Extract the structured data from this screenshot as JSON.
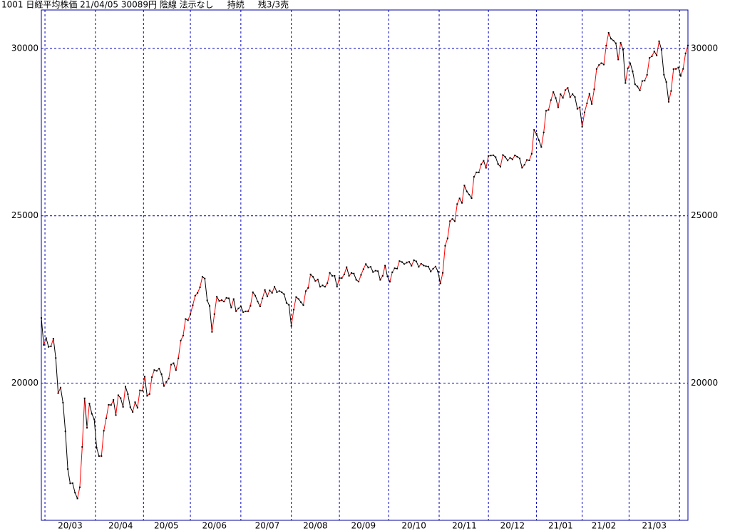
{
  "chart_data": {
    "type": "line",
    "title": "1001 日経平均株価 21/04/05 30089円 陰線 法示なし     持続     残3/3売",
    "categories": [
      null,
      null,
      null,
      null,
      null,
      null,
      null,
      null,
      null,
      null,
      null,
      null,
      "20/03",
      null,
      null,
      null,
      null,
      null,
      null,
      null,
      null,
      null,
      null,
      null,
      null,
      null,
      null,
      null,
      null,
      null,
      null,
      null,
      null,
      "20/04",
      null,
      null,
      null,
      null,
      null,
      null,
      null,
      null,
      null,
      null,
      null,
      null,
      null,
      null,
      null,
      null,
      null,
      null,
      "20/05",
      null,
      null,
      null,
      null,
      null,
      null,
      null,
      null,
      null,
      null,
      null,
      null,
      null,
      null,
      null,
      null,
      null,
      null,
      null,
      "20/06",
      null,
      null,
      null,
      null,
      null,
      null,
      null,
      null,
      null,
      null,
      null,
      null,
      null,
      null,
      null,
      null,
      null,
      null,
      null,
      null,
      null,
      "20/07",
      null,
      null,
      null,
      null,
      null,
      null,
      null,
      null,
      null,
      null,
      null,
      null,
      null,
      null,
      null,
      null,
      null,
      null,
      null,
      "20/08",
      null,
      null,
      null,
      null,
      null,
      null,
      null,
      null,
      null,
      null,
      null,
      null,
      null,
      null,
      null,
      null,
      null,
      null,
      null,
      "20/09",
      null,
      null,
      null,
      null,
      null,
      null,
      null,
      null,
      null,
      null,
      null,
      null,
      null,
      null,
      null,
      null,
      null,
      null,
      null,
      null,
      "20/10",
      null,
      null,
      null,
      null,
      null,
      null,
      null,
      null,
      null,
      null,
      null,
      null,
      null,
      null,
      null,
      null,
      null,
      null,
      null,
      null,
      "20/11",
      null,
      null,
      null,
      null,
      null,
      null,
      null,
      null,
      null,
      null,
      null,
      null,
      null,
      null,
      null,
      null,
      null,
      null,
      null,
      "20/12",
      null,
      null,
      null,
      null,
      null,
      null,
      null,
      null,
      null,
      null,
      null,
      null,
      null,
      null,
      null,
      null,
      null,
      null,
      null,
      "21/01",
      null,
      null,
      null,
      null,
      null,
      null,
      null,
      null,
      null,
      null,
      null,
      null,
      null,
      null,
      null,
      null,
      null,
      "21/02",
      null,
      null,
      null,
      null,
      null,
      null,
      null,
      null,
      null,
      null,
      null,
      null,
      null,
      null,
      null,
      null,
      null,
      null,
      null,
      null,
      "21/03",
      null,
      null,
      null,
      null,
      null,
      null,
      null,
      null,
      null,
      null,
      null,
      null,
      null,
      null
    ],
    "values": [
      21948,
      21142,
      21344,
      21082,
      21100,
      21329,
      20749,
      19698,
      19867,
      19416,
      18559,
      17431,
      17002,
      17011,
      16726,
      16552,
      16887,
      18092,
      19546,
      18664,
      19389,
      19084,
      18917,
      18065,
      17819,
      17820,
      18576,
      18950,
      19353,
      19345,
      19499,
      19043,
      19638,
      19550,
      19290,
      19897,
      19669,
      19281,
      19137,
      19429,
      19262,
      19783,
      19771,
      20193,
      19619,
      19674,
      20179,
      20390,
      20366,
      20433,
      20267,
      19914,
      20037,
      20133,
      20552,
      20595,
      20388,
      20741,
      21271,
      21419,
      21916,
      21877,
      22062,
      22325,
      22613,
      22695,
      22863,
      23178,
      23124,
      22472,
      22305,
      21531,
      22062,
      22582,
      22455,
      22479,
      22437,
      22549,
      22534,
      22259,
      22512,
      22149,
      22232,
      22288,
      22121,
      22145,
      22147,
      22306,
      22714,
      22614,
      22438,
      22290,
      22529,
      22784,
      22587,
      22770,
      22697,
      22881,
      22717,
      22751,
      22715,
      22657,
      22397,
      22339,
      21710,
      22195,
      22573,
      22514,
      22418,
      22329,
      22750,
      22843,
      23249,
      23178,
      23051,
      23096,
      22880,
      22920,
      22880,
      22985,
      23296,
      23204,
      23208,
      22882,
      23140,
      23138,
      23247,
      23465,
      23205,
      23290,
      23274,
      23089,
      23032,
      23235,
      23406,
      23559,
      23454,
      23475,
      23319,
      23360,
      23346,
      23087,
      23204,
      23511,
      23185,
      23029,
      23312,
      23433,
      23422,
      23647,
      23619,
      23558,
      23601,
      23626,
      23507,
      23671,
      23639,
      23474,
      23567,
      23516,
      23494,
      23485,
      23331,
      23418,
      23485,
      23331,
      22977,
      23295,
      24105,
      24325,
      24839,
      24905,
      24839,
      25349,
      25520,
      25385,
      25906,
      25728,
      25634,
      25527,
      26165,
      26297,
      26296,
      26537,
      26644,
      26433,
      26787,
      26800,
      26809,
      26751,
      26547,
      26467,
      26817,
      26756,
      26652,
      26732,
      26687,
      26806,
      26763,
      26714,
      26436,
      26524,
      26668,
      26656,
      26854,
      27568,
      27444,
      27258,
      27055,
      27490,
      28139,
      28164,
      28456,
      28698,
      28519,
      28242,
      28633,
      28523,
      28756,
      28822,
      28546,
      28635,
      28546,
      28197,
      28240,
      27663,
      28091,
      28362,
      28646,
      28341,
      28779,
      29388,
      29505,
      29562,
      29520,
      30084,
      30467,
      30292,
      30236,
      30156,
      29671,
      30168,
      29966,
      28966,
      29408,
      29559,
      29314,
      28930,
      28864,
      28743,
      29027,
      29036,
      29211,
      29717,
      29766,
      29914,
      29792,
      30216,
      29962,
      29216,
      28995,
      28406,
      28729,
      29384,
      29388,
      29432,
      29179,
      29389,
      29854,
      30089
    ],
    "up_color": "#ff0000",
    "down_color": "#000000",
    "frame_color": "#0000a0",
    "ylim": [
      15900,
      31150
    ],
    "yticks": [
      20000,
      25000,
      30000
    ],
    "grid": true
  }
}
